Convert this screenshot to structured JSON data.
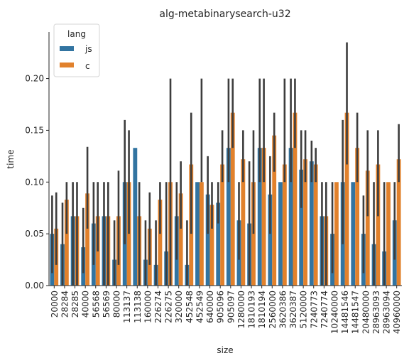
{
  "chart_data": {
    "type": "bar",
    "title": "alg-metabinarysearch-u32",
    "xlabel": "size",
    "ylabel": "time",
    "ylim": [
      0,
      0.245
    ],
    "yticks": [
      0.0,
      0.05,
      0.1,
      0.15,
      0.2
    ],
    "ytick_labels": [
      "0.00",
      "0.05",
      "0.10",
      "0.15",
      "0.20"
    ],
    "grid": false,
    "legend": {
      "title": "lang",
      "placement": "top-left"
    },
    "categories": [
      "20000",
      "28284",
      "28285",
      "40000",
      "56568",
      "56569",
      "80000",
      "113137",
      "113138",
      "160000",
      "226274",
      "226275",
      "320000",
      "452548",
      "452549",
      "640000",
      "905096",
      "905097",
      "1280000",
      "1810193",
      "1810194",
      "2560000",
      "3620386",
      "3620387",
      "5120000",
      "7240773",
      "7240774",
      "10240000",
      "14481546",
      "14481547",
      "20480000",
      "28963093",
      "28963094",
      "40960000"
    ],
    "series": [
      {
        "name": "js",
        "color": "#3274a1",
        "values": [
          0.05,
          0.04,
          0.067,
          0.037,
          0.06,
          0.067,
          0.025,
          0.1,
          0.133,
          0.025,
          0.02,
          0.033,
          0.067,
          0.02,
          0.1,
          0.088,
          0.08,
          0.133,
          0.063,
          0.06,
          0.133,
          0.088,
          0.1,
          0.133,
          0.112,
          0.12,
          0.067,
          0.05,
          0.1,
          0.1,
          0.05,
          0.04,
          0.033,
          0.063
        ],
        "ci_low": [
          0.012,
          0.0,
          0.0,
          0.012,
          0.02,
          0.0,
          0.0,
          0.04,
          0.133,
          0.0,
          0.0,
          0.0,
          0.025,
          0.0,
          0.1,
          0.05,
          0.06,
          0.1,
          0.025,
          0.0,
          0.1,
          0.05,
          0.1,
          0.1,
          0.075,
          0.1,
          0.0,
          0.012,
          0.04,
          0.1,
          0.012,
          0.0,
          0.0,
          0.025
        ],
        "ci_high": [
          0.087,
          0.08,
          0.1,
          0.075,
          0.1,
          0.1,
          0.063,
          0.16,
          0.133,
          0.063,
          0.063,
          0.1,
          0.1,
          0.063,
          0.1,
          0.125,
          0.1,
          0.2,
          0.1,
          0.12,
          0.2,
          0.125,
          0.1,
          0.2,
          0.15,
          0.14,
          0.1,
          0.1,
          0.16,
          0.1,
          0.087,
          0.1,
          0.1,
          0.1
        ]
      },
      {
        "name": "c",
        "color": "#e1812c",
        "values": [
          0.055,
          0.083,
          0.067,
          0.089,
          0.067,
          0.067,
          0.067,
          0.1,
          0.067,
          0.055,
          0.083,
          0.1,
          0.089,
          0.117,
          0.1,
          0.078,
          0.117,
          0.167,
          0.122,
          0.1,
          0.133,
          0.145,
          0.117,
          0.167,
          0.122,
          0.117,
          0.067,
          0.1,
          0.167,
          0.133,
          0.111,
          0.117,
          0.1,
          0.122
        ],
        "ci_low": [
          0.02,
          0.05,
          0.0,
          0.055,
          0.033,
          0.0,
          0.02,
          0.05,
          0.0,
          0.02,
          0.05,
          0.0,
          0.055,
          0.05,
          0.1,
          0.055,
          0.1,
          0.133,
          0.1,
          0.05,
          0.1,
          0.11,
          0.1,
          0.133,
          0.1,
          0.1,
          0.0,
          0.1,
          0.117,
          0.1,
          0.067,
          0.067,
          0.1,
          0.1
        ],
        "ci_high": [
          0.09,
          0.1,
          0.1,
          0.134,
          0.1,
          0.1,
          0.111,
          0.15,
          0.1,
          0.09,
          0.1,
          0.2,
          0.12,
          0.167,
          0.2,
          0.1,
          0.15,
          0.2,
          0.15,
          0.15,
          0.2,
          0.167,
          0.2,
          0.2,
          0.15,
          0.133,
          0.1,
          0.1,
          0.235,
          0.167,
          0.15,
          0.15,
          0.1,
          0.156
        ]
      }
    ]
  }
}
